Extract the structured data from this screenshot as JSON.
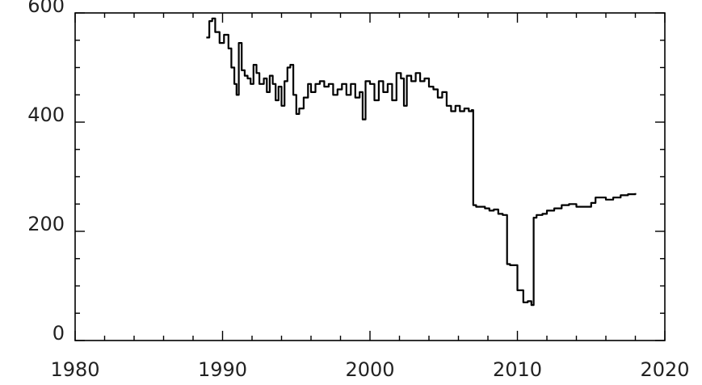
{
  "title_fragment": "\"",
  "chart_data": {
    "type": "line",
    "title": "",
    "xlabel": "",
    "ylabel": "",
    "xlim": [
      1980,
      2020
    ],
    "ylim": [
      0,
      600
    ],
    "xticks": [
      1980,
      1990,
      2000,
      2010,
      2020
    ],
    "yticks": [
      0,
      200,
      400,
      600
    ],
    "x_tick_labels": [
      "1980",
      "1990",
      "2000",
      "2010",
      "2020"
    ],
    "y_tick_labels": [
      "0",
      "200",
      "400",
      "600"
    ],
    "grid": false,
    "legend": "none",
    "line_color": "#000000",
    "series": [
      {
        "x": [
          1988.9,
          1989.1,
          1989.3,
          1989.5,
          1989.8,
          1990.1,
          1990.4,
          1990.6,
          1990.8,
          1990.95,
          1991.1,
          1991.3,
          1991.5,
          1991.7,
          1991.9,
          1992.1,
          1992.3,
          1992.5,
          1992.8,
          1993.0,
          1993.2,
          1993.4,
          1993.6,
          1993.8,
          1994.0,
          1994.2,
          1994.4,
          1994.6,
          1994.8,
          1995.0,
          1995.2,
          1995.5,
          1995.8,
          1996.0,
          1996.3,
          1996.6,
          1996.9,
          1997.2,
          1997.5,
          1997.8,
          1998.1,
          1998.4,
          1998.7,
          1999.0,
          1999.3,
          1999.5,
          1999.7,
          2000.0,
          2000.3,
          2000.6,
          2000.9,
          2001.2,
          2001.5,
          2001.8,
          2002.1,
          2002.3,
          2002.5,
          2002.8,
          2003.1,
          2003.4,
          2003.7,
          2004.0,
          2004.3,
          2004.6,
          2004.9,
          2005.2,
          2005.5,
          2005.8,
          2006.1,
          2006.4,
          2006.7,
          2006.9,
          2007.0,
          2007.2,
          2007.5,
          2007.8,
          2008.1,
          2008.4,
          2008.7,
          2009.0,
          2009.3,
          2009.5,
          2009.8,
          2010.0,
          2010.3,
          2010.4,
          2010.7,
          2010.95,
          2011.1,
          2011.3,
          2011.7,
          2012.0,
          2012.5,
          2013.0,
          2013.5,
          2014.0,
          2014.5,
          2015.0,
          2015.3,
          2015.7,
          2016.0,
          2016.5,
          2017.0,
          2017.5,
          2018.0
        ],
        "y": [
          555,
          585,
          590,
          565,
          545,
          560,
          535,
          500,
          470,
          450,
          545,
          495,
          485,
          480,
          470,
          505,
          490,
          470,
          480,
          455,
          485,
          470,
          440,
          465,
          430,
          475,
          500,
          505,
          450,
          415,
          425,
          445,
          470,
          455,
          470,
          475,
          465,
          470,
          450,
          460,
          470,
          450,
          470,
          445,
          455,
          405,
          475,
          470,
          440,
          475,
          455,
          470,
          440,
          490,
          480,
          430,
          485,
          475,
          490,
          475,
          480,
          465,
          460,
          445,
          455,
          430,
          420,
          430,
          420,
          425,
          420,
          422,
          248,
          245,
          245,
          242,
          238,
          240,
          232,
          230,
          140,
          138,
          138,
          92,
          92,
          70,
          72,
          65,
          225,
          230,
          232,
          238,
          242,
          248,
          250,
          245,
          245,
          252,
          262,
          262,
          258,
          262,
          266,
          268,
          270
        ]
      }
    ]
  }
}
